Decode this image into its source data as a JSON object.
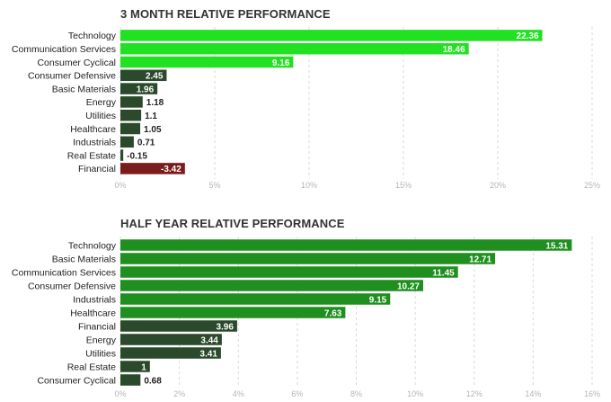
{
  "charts": [
    {
      "title": "3 MONTH RELATIVE PERFORMANCE",
      "chart_data": {
        "type": "bar",
        "orientation": "horizontal",
        "categories": [
          "Technology",
          "Communication Services",
          "Consumer Cyclical",
          "Consumer Defensive",
          "Basic Materials",
          "Energy",
          "Utilities",
          "Healthcare",
          "Industrials",
          "Real Estate",
          "Financial"
        ],
        "values": [
          22.36,
          18.46,
          9.16,
          2.45,
          1.96,
          1.18,
          1.1,
          1.05,
          0.71,
          -0.15,
          -3.42
        ],
        "value_labels": [
          "22.36",
          "18.46",
          "9.16",
          "2.45",
          "1.96",
          "1.18",
          "1.1",
          "1.05",
          "0.71",
          "-0.15",
          "-3.42"
        ],
        "colors": [
          "#22e022",
          "#22e022",
          "#22e022",
          "#2b4a2b",
          "#2b4a2b",
          "#2b4a2b",
          "#2b4a2b",
          "#2b4a2b",
          "#2b4a2b",
          "#2b4a2b",
          "#7a1c1c"
        ],
        "xlim": [
          0,
          25
        ],
        "x_ticks": [
          "0%",
          "5%",
          "10%",
          "15%",
          "20%",
          "25%"
        ],
        "grid": true
      }
    },
    {
      "title": "HALF YEAR RELATIVE PERFORMANCE",
      "chart_data": {
        "type": "bar",
        "orientation": "horizontal",
        "categories": [
          "Technology",
          "Basic Materials",
          "Communication Services",
          "Consumer Defensive",
          "Industrials",
          "Healthcare",
          "Financial",
          "Energy",
          "Utilities",
          "Real Estate",
          "Consumer Cyclical"
        ],
        "values": [
          15.31,
          12.71,
          11.45,
          10.27,
          9.15,
          7.63,
          3.96,
          3.44,
          3.41,
          1,
          0.68
        ],
        "value_labels": [
          "15.31",
          "12.71",
          "11.45",
          "10.27",
          "9.15",
          "7.63",
          "3.96",
          "3.44",
          "3.41",
          "1",
          "0.68"
        ],
        "colors": [
          "#1f8f1f",
          "#1f8f1f",
          "#1f8f1f",
          "#1f8f1f",
          "#1f8f1f",
          "#1f8f1f",
          "#2b4a2b",
          "#2b4a2b",
          "#2b4a2b",
          "#2b4a2b",
          "#2b4a2b"
        ],
        "xlim": [
          0,
          16
        ],
        "x_ticks": [
          "0%",
          "2%",
          "4%",
          "6%",
          "8%",
          "10%",
          "12%",
          "14%",
          "16%"
        ],
        "grid": true
      }
    }
  ]
}
